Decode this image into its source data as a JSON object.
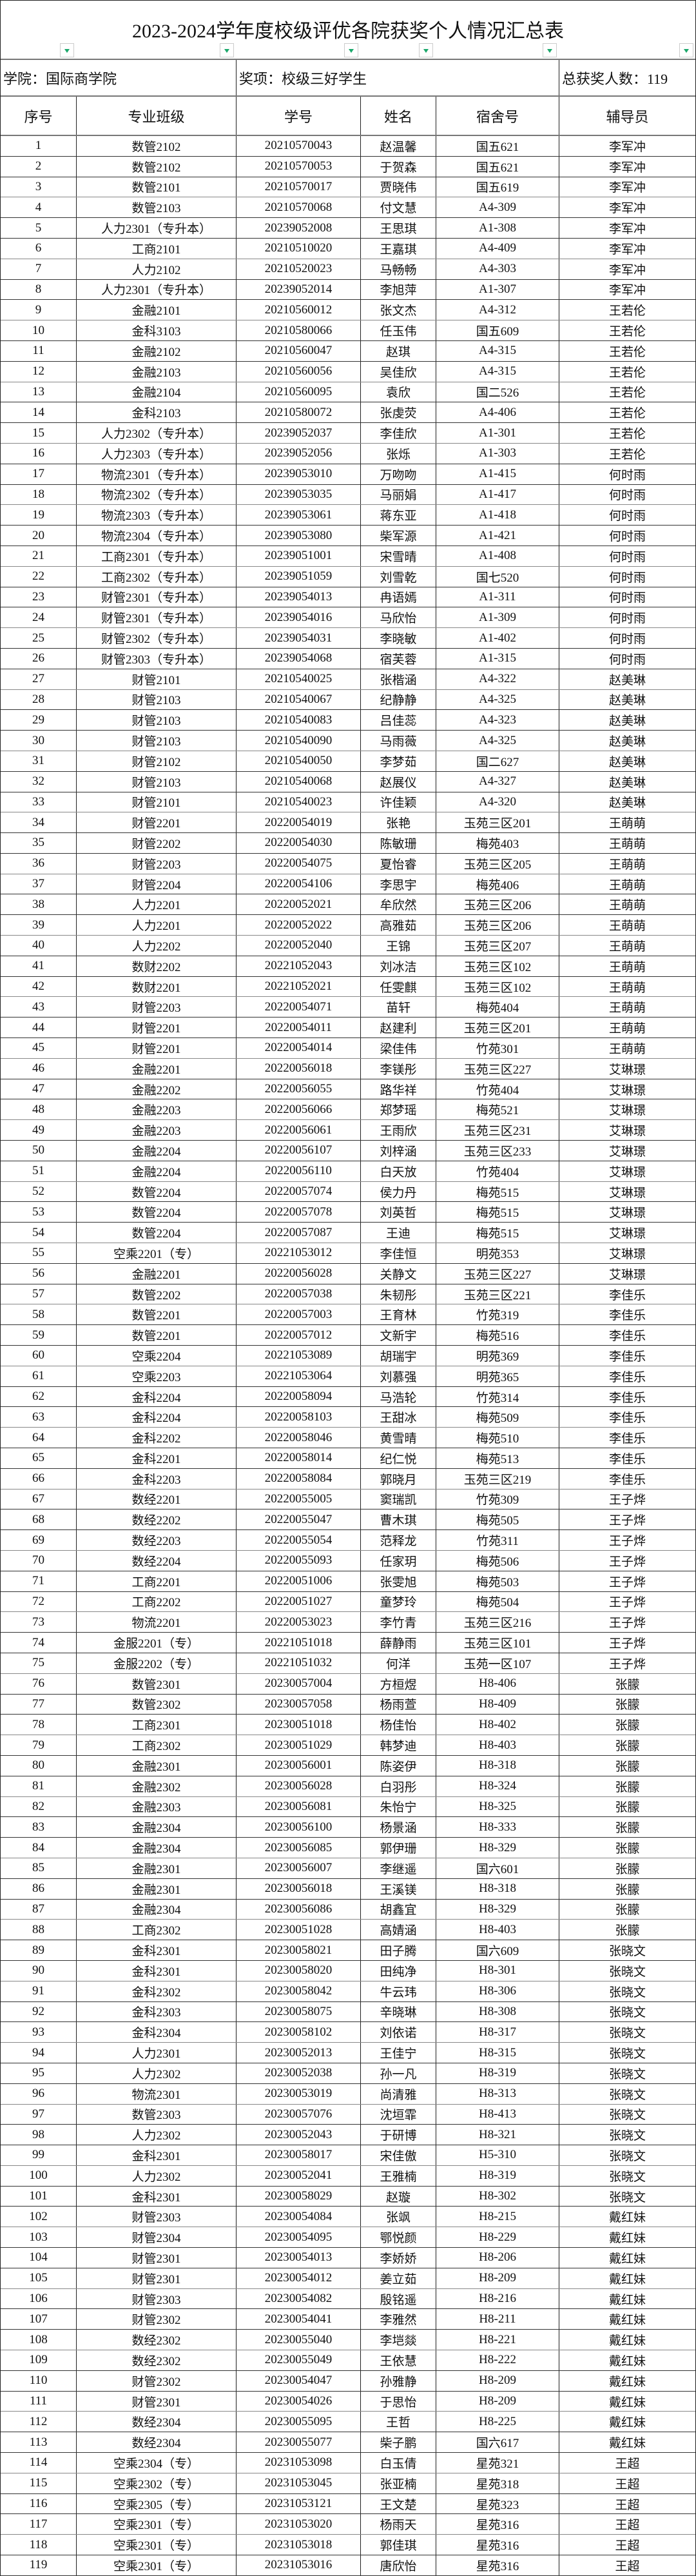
{
  "title": "2023-2024学年度校级评优各院获奖个人情况汇总表",
  "info": {
    "college": "学院：国际商学院",
    "award": "奖项：校级三好学生",
    "total": "总获奖人数：119"
  },
  "filter_icon": "filter-dropdown-icon",
  "filter_color": "#1aa86b",
  "columns": [
    "序号",
    "专业班级",
    "学号",
    "姓名",
    "宿舍号",
    "辅导员"
  ],
  "rows": [
    [
      "1",
      "数管2102",
      "20210570043",
      "赵温馨",
      "国五621",
      "李军冲"
    ],
    [
      "2",
      "数管2102",
      "20210570053",
      "于贺森",
      "国五621",
      "李军冲"
    ],
    [
      "3",
      "数管2101",
      "20210570017",
      "贾晓伟",
      "国五619",
      "李军冲"
    ],
    [
      "4",
      "数管2103",
      "20210570068",
      "付文慧",
      "A4-309",
      "李军冲"
    ],
    [
      "5",
      "人力2301（专升本）",
      "20239052008",
      "王思琪",
      "A1-308",
      "李军冲"
    ],
    [
      "6",
      "工商2101",
      "20210510020",
      "王嘉琪",
      "A4-409",
      "李军冲"
    ],
    [
      "7",
      "人力2102",
      "20210520023",
      "马畅畅",
      "A4-303",
      "李军冲"
    ],
    [
      "8",
      "人力2301（专升本）",
      "20239052014",
      "李旭萍",
      "A1-307",
      "李军冲"
    ],
    [
      "9",
      "金融2101",
      "20210560012",
      "张文杰",
      "A4-312",
      "王若伦"
    ],
    [
      "10",
      "金科3103",
      "20210580066",
      "任玉伟",
      "国五609",
      "王若伦"
    ],
    [
      "11",
      "金融2102",
      "20210560047",
      "赵琪",
      "A4-315",
      "王若伦"
    ],
    [
      "12",
      "金融2103",
      "20210560056",
      "吴佳欣",
      "A4-315",
      "王若伦"
    ],
    [
      "13",
      "金融2104",
      "20210560095",
      "袁欣",
      "国二526",
      "王若伦"
    ],
    [
      "14",
      "金科2103",
      "20210580072",
      "张虔荧",
      "A4-406",
      "王若伦"
    ],
    [
      "15",
      "人力2302（专升本）",
      "20239052037",
      "李佳欣",
      "A1-301",
      "王若伦"
    ],
    [
      "16",
      "人力2303（专升本）",
      "20239052056",
      "张烁",
      "A1-303",
      "王若伦"
    ],
    [
      "17",
      "物流2301（专升本）",
      "20239053010",
      "万吻吻",
      "A1-415",
      "何时雨"
    ],
    [
      "18",
      "物流2302（专升本）",
      "20239053035",
      "马丽娟",
      "A1-417",
      "何时雨"
    ],
    [
      "19",
      "物流2303（专升本）",
      "20239053061",
      "蒋东亚",
      "A1-418",
      "何时雨"
    ],
    [
      "20",
      "物流2304（专升本）",
      "20239053080",
      "柴军源",
      "A1-421",
      "何时雨"
    ],
    [
      "21",
      "工商2301（专升本）",
      "20239051001",
      "宋雪晴",
      "A1-408",
      "何时雨"
    ],
    [
      "22",
      "工商2302（专升本）",
      "20239051059",
      "刘雪乾",
      "国七520",
      "何时雨"
    ],
    [
      "23",
      "财管2301（专升本）",
      "20239054013",
      "冉语嫣",
      "A1-311",
      "何时雨"
    ],
    [
      "24",
      "财管2301（专升本）",
      "20239054016",
      "马欣怡",
      "A1-309",
      "何时雨"
    ],
    [
      "25",
      "财管2302（专升本）",
      "20239054031",
      "李晓敏",
      "A1-402",
      "何时雨"
    ],
    [
      "26",
      "财管2303（专升本）",
      "20239054068",
      "宿芙蓉",
      "A1-315",
      "何时雨"
    ],
    [
      "27",
      "财管2101",
      "20210540025",
      "张楷涵",
      "A4-322",
      "赵美琳"
    ],
    [
      "28",
      "财管2103",
      "20210540067",
      "纪静静",
      "A4-325",
      "赵美琳"
    ],
    [
      "29",
      "财管2103",
      "20210540083",
      "吕佳蕊",
      "A4-323",
      "赵美琳"
    ],
    [
      "30",
      "财管2103",
      "20210540090",
      "马雨薇",
      "A4-325",
      "赵美琳"
    ],
    [
      "31",
      "财管2102",
      "20210540050",
      "李梦茹",
      "国二627",
      "赵美琳"
    ],
    [
      "32",
      "财管2103",
      "20210540068",
      "赵展仪",
      "A4-327",
      "赵美琳"
    ],
    [
      "33",
      "财管2101",
      "20210540023",
      "许佳颖",
      "A4-320",
      "赵美琳"
    ],
    [
      "34",
      "财管2201",
      "20220054019",
      "张艳",
      "玉苑三区201",
      "王萌萌"
    ],
    [
      "35",
      "财管2202",
      "20220054030",
      "陈敏珊",
      "梅苑403",
      "王萌萌"
    ],
    [
      "36",
      "财管2203",
      "20220054075",
      "夏怡睿",
      "玉苑三区205",
      "王萌萌"
    ],
    [
      "37",
      "财管2204",
      "20220054106",
      "李思宇",
      "梅苑406",
      "王萌萌"
    ],
    [
      "38",
      "人力2201",
      "20220052021",
      "牟欣然",
      "玉苑三区206",
      "王萌萌"
    ],
    [
      "39",
      "人力2201",
      "20220052022",
      "高雅茹",
      "玉苑三区206",
      "王萌萌"
    ],
    [
      "40",
      "人力2202",
      "20220052040",
      "王锦",
      "玉苑三区207",
      "王萌萌"
    ],
    [
      "41",
      "数财2202",
      "20221052043",
      "刘冰洁",
      "玉苑三区102",
      "王萌萌"
    ],
    [
      "42",
      "数财2201",
      "20221052021",
      "任雯麒",
      "玉苑三区102",
      "王萌萌"
    ],
    [
      "43",
      "财管2203",
      "20220054071",
      "苗轩",
      "梅苑404",
      "王萌萌"
    ],
    [
      "44",
      "财管2201",
      "20220054011",
      "赵建利",
      "玉苑三区201",
      "王萌萌"
    ],
    [
      "45",
      "财管2201",
      "20220054014",
      "梁佳伟",
      "竹苑301",
      "王萌萌"
    ],
    [
      "46",
      "金融2201",
      "20220056018",
      "李镁彤",
      "玉苑三区227",
      "艾琳璟"
    ],
    [
      "47",
      "金融2202",
      "20220056055",
      "路华祥",
      "竹苑404",
      "艾琳璟"
    ],
    [
      "48",
      "金融2203",
      "20220056066",
      "郑梦瑶",
      "梅苑521",
      "艾琳璟"
    ],
    [
      "49",
      "金融2203",
      "20220056061",
      "王雨欣",
      "玉苑三区231",
      "艾琳璟"
    ],
    [
      "50",
      "金融2204",
      "20220056107",
      "刘梓涵",
      "玉苑三区233",
      "艾琳璟"
    ],
    [
      "51",
      "金融2204",
      "20220056110",
      "白天放",
      "竹苑404",
      "艾琳璟"
    ],
    [
      "52",
      "数管2204",
      "20220057074",
      "侯力丹",
      "梅苑515",
      "艾琳璟"
    ],
    [
      "53",
      "数管2204",
      "20220057078",
      "刘英哲",
      "梅苑515",
      "艾琳璟"
    ],
    [
      "54",
      "数管2204",
      "20220057087",
      "王迪",
      "梅苑515",
      "艾琳璟"
    ],
    [
      "55",
      "空乘2201（专）",
      "20221053012",
      "李佳恒",
      "明苑353",
      "艾琳璟"
    ],
    [
      "56",
      "金融2201",
      "20220056028",
      "关静文",
      "玉苑三区227",
      "艾琳璟"
    ],
    [
      "57",
      "数管2202",
      "20220057038",
      "朱韧彤",
      "玉苑三区221",
      "李佳乐"
    ],
    [
      "58",
      "数管2201",
      "20220057003",
      "王育林",
      "竹苑319",
      "李佳乐"
    ],
    [
      "59",
      "数管2201",
      "20220057012",
      "文新宇",
      "梅苑516",
      "李佳乐"
    ],
    [
      "60",
      "空乘2204",
      "20221053089",
      "胡瑞宇",
      "明苑369",
      "李佳乐"
    ],
    [
      "61",
      "空乘2203",
      "20221053064",
      "刘慕强",
      "明苑365",
      "李佳乐"
    ],
    [
      "62",
      "金科2204",
      "20220058094",
      "马浩轮",
      "竹苑314",
      "李佳乐"
    ],
    [
      "63",
      "金科2204",
      "20220058103",
      "王甜冰",
      "梅苑509",
      "李佳乐"
    ],
    [
      "64",
      "金科2202",
      "20220058046",
      "黄雪晴",
      "梅苑510",
      "李佳乐"
    ],
    [
      "65",
      "金科2201",
      "20220058014",
      "纪仁悦",
      "梅苑513",
      "李佳乐"
    ],
    [
      "66",
      "金科2203",
      "20220058084",
      "郭晓月",
      "玉苑三区219",
      "李佳乐"
    ],
    [
      "67",
      "数经2201",
      "20220055005",
      "窦瑞凯",
      "竹苑309",
      "王子烨"
    ],
    [
      "68",
      "数经2202",
      "20220055047",
      "曹木琪",
      "梅苑505",
      "王子烨"
    ],
    [
      "69",
      "数经2203",
      "20220055054",
      "范释龙",
      "竹苑311",
      "王子烨"
    ],
    [
      "70",
      "数经2204",
      "20220055093",
      "任家玥",
      "梅苑506",
      "王子烨"
    ],
    [
      "71",
      "工商2201",
      "20220051006",
      "张雯旭",
      "梅苑503",
      "王子烨"
    ],
    [
      "72",
      "工商2202",
      "20220051027",
      "童梦玲",
      "梅苑504",
      "王子烨"
    ],
    [
      "73",
      "物流2201",
      "20220053023",
      "李竹青",
      "玉苑三区216",
      "王子烨"
    ],
    [
      "74",
      "金服2201（专）",
      "20221051018",
      "薛静雨",
      "玉苑三区101",
      "王子烨"
    ],
    [
      "75",
      "金服2202（专）",
      "20221051032",
      "何洋",
      "玉苑一区107",
      "王子烨"
    ],
    [
      "76",
      "数管2301",
      "20230057004",
      "方桓煜",
      "H8-406",
      "张朦"
    ],
    [
      "77",
      "数管2302",
      "20230057058",
      "杨雨萱",
      "H8-409",
      "张朦"
    ],
    [
      "78",
      "工商2301",
      "20230051018",
      "杨佳怡",
      "H8-402",
      "张朦"
    ],
    [
      "79",
      "工商2302",
      "20230051029",
      "韩梦迪",
      "H8-403",
      "张朦"
    ],
    [
      "80",
      "金融2301",
      "20230056001",
      "陈姿伊",
      "H8-318",
      "张朦"
    ],
    [
      "81",
      "金融2302",
      "20230056028",
      "白羽彤",
      "H8-324",
      "张朦"
    ],
    [
      "82",
      "金融2303",
      "20230056081",
      "朱怡宁",
      "H8-325",
      "张朦"
    ],
    [
      "83",
      "金融2304",
      "20230056100",
      "杨景涵",
      "H8-333",
      "张朦"
    ],
    [
      "84",
      "金融2304",
      "20230056085",
      "郭伊珊",
      "H8-329",
      "张朦"
    ],
    [
      "85",
      "金融2301",
      "20230056007",
      "李继遥",
      "国六601",
      "张朦"
    ],
    [
      "86",
      "金融2301",
      "20230056018",
      "王溪镁",
      "H8-318",
      "张朦"
    ],
    [
      "87",
      "金融2304",
      "20230056086",
      "胡鑫宜",
      "H8-329",
      "张朦"
    ],
    [
      "88",
      "工商2302",
      "20230051028",
      "高婧涵",
      "H8-403",
      "张朦"
    ],
    [
      "89",
      "金科2301",
      "20230058021",
      "田子腾",
      "国六609",
      "张晓文"
    ],
    [
      "90",
      "金科2301",
      "20230058020",
      "田纯净",
      "H8-301",
      "张晓文"
    ],
    [
      "91",
      "金科2302",
      "20230058042",
      "牛云玮",
      "H8-306",
      "张晓文"
    ],
    [
      "92",
      "金科2303",
      "20230058075",
      "辛晓琳",
      "H8-308",
      "张晓文"
    ],
    [
      "93",
      "金科2304",
      "20230058102",
      "刘依诺",
      "H8-317",
      "张晓文"
    ],
    [
      "94",
      "人力2301",
      "20230052013",
      "王佳宁",
      "H8-315",
      "张晓文"
    ],
    [
      "95",
      "人力2302",
      "20230052038",
      "孙一凡",
      "H8-319",
      "张晓文"
    ],
    [
      "96",
      "物流2301",
      "20230053019",
      "尚清雅",
      "H8-313",
      "张晓文"
    ],
    [
      "97",
      "数管2303",
      "20230057076",
      "沈垣霏",
      "H8-413",
      "张晓文"
    ],
    [
      "98",
      "人力2302",
      "20230052043",
      "于研博",
      "H8-321",
      "张晓文"
    ],
    [
      "99",
      "金科2301",
      "20230058017",
      "宋佳傲",
      "H5-310",
      "张晓文"
    ],
    [
      "100",
      "人力2302",
      "20230052041",
      "王雅楠",
      "H8-319",
      "张晓文"
    ],
    [
      "101",
      "金科2301",
      "20230058029",
      "赵璇",
      "H8-302",
      "张晓文"
    ],
    [
      "102",
      "财管2303",
      "20230054084",
      "张飒",
      "H8-215",
      "戴红妹"
    ],
    [
      "103",
      "财管2304",
      "20230054095",
      "鄂悦颜",
      "H8-229",
      "戴红妹"
    ],
    [
      "104",
      "财管2301",
      "20230054013",
      "李娇娇",
      "H8-206",
      "戴红妹"
    ],
    [
      "105",
      "财管2301",
      "20230054012",
      "姜立茹",
      "H8-209",
      "戴红妹"
    ],
    [
      "106",
      "财管2303",
      "20230054082",
      "殷铭遥",
      "H8-216",
      "戴红妹"
    ],
    [
      "107",
      "财管2302",
      "20230054041",
      "李雅然",
      "H8-211",
      "戴红妹"
    ],
    [
      "108",
      "数经2302",
      "20230055040",
      "李垲燚",
      "H8-221",
      "戴红妹"
    ],
    [
      "109",
      "数经2302",
      "20230055049",
      "王依慧",
      "H8-222",
      "戴红妹"
    ],
    [
      "110",
      "财管2302",
      "20230054047",
      "孙雅静",
      "H8-209",
      "戴红妹"
    ],
    [
      "111",
      "财管2301",
      "20230054026",
      "于思怡",
      "H8-209",
      "戴红妹"
    ],
    [
      "112",
      "数经2304",
      "20230055095",
      "王哲",
      "H8-225",
      "戴红妹"
    ],
    [
      "113",
      "数经2304",
      "20230055077",
      "柴子鹏",
      "国六617",
      "戴红妹"
    ],
    [
      "114",
      "空乘2304（专）",
      "20231053098",
      "白玉倩",
      "星苑321",
      "王超"
    ],
    [
      "115",
      "空乘2302（专）",
      "20231053045",
      "张亚楠",
      "星苑318",
      "王超"
    ],
    [
      "116",
      "空乘2305（专）",
      "20231053121",
      "王文楚",
      "星苑323",
      "王超"
    ],
    [
      "117",
      "空乘2301（专）",
      "20231053020",
      "杨雨天",
      "星苑316",
      "王超"
    ],
    [
      "118",
      "空乘2301（专）",
      "20231053018",
      "郭佳琪",
      "星苑316",
      "王超"
    ],
    [
      "119",
      "空乘2301（专）",
      "20231053016",
      "唐欣怡",
      "星苑316",
      "王超"
    ]
  ]
}
